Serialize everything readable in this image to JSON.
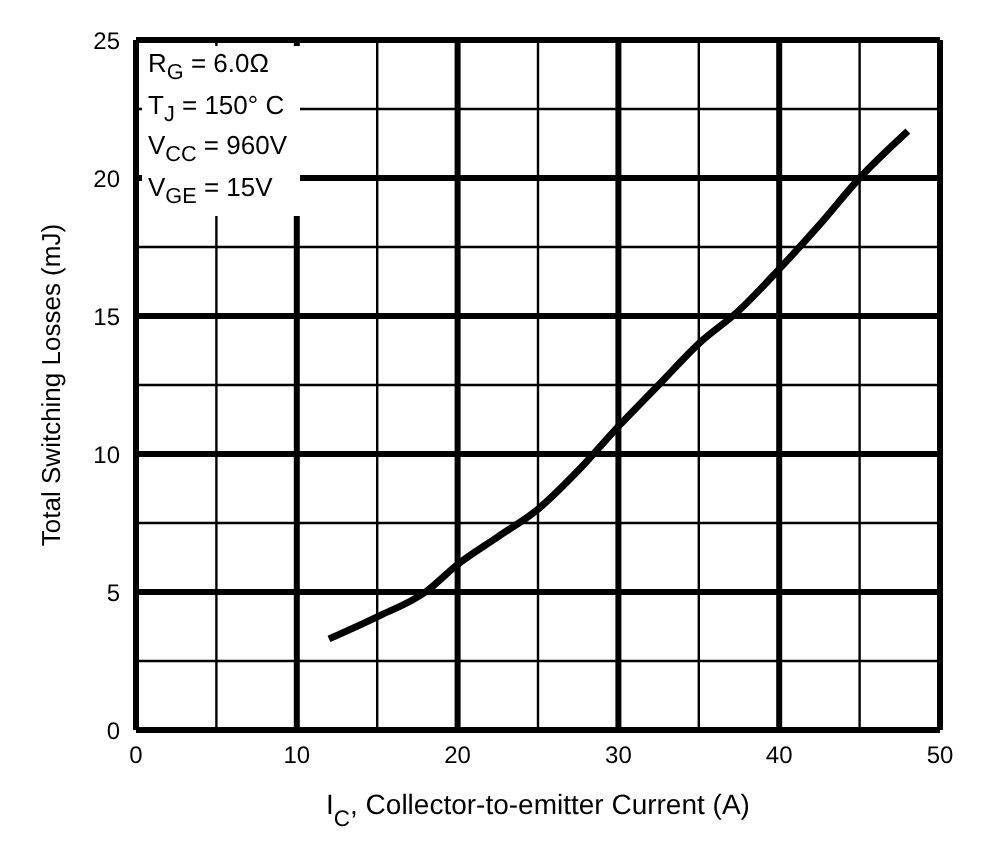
{
  "chart_data": {
    "type": "line",
    "xlabel": "I$_{C}$, Collector-to-emitter Current (A)",
    "ylabel": "Total Switching Losses (mJ)",
    "annotations": [
      "R$_{G}$ = 6.0Ω",
      "T$_{J}$ = 150° C",
      "V$_{CC}$ = 960V",
      "V$_{GE}$ = 15V"
    ],
    "series": [
      {
        "color": "#000000",
        "x": [
          12,
          15,
          18,
          20,
          22.5,
          25,
          27.5,
          30,
          32.5,
          35,
          37.5,
          40,
          42.5,
          45,
          48
        ],
        "values": [
          3.3,
          4.1,
          5,
          6,
          7,
          8,
          9.4,
          11,
          12.5,
          14,
          15.2,
          16.7,
          18.3,
          20,
          21.7
        ]
      }
    ],
    "xlim": [
      0,
      50
    ],
    "xticks": [
      0,
      {
        "value": 5,
        "label": null
      },
      10,
      {
        "value": 15,
        "label": null
      },
      20,
      {
        "value": 25,
        "label": null
      },
      30,
      {
        "value": 35,
        "label": null
      },
      40,
      {
        "value": 45,
        "label": null
      },
      50
    ],
    "ylim": [
      0,
      25
    ],
    "yticks": [
      0,
      {
        "value": 2.5,
        "label": null
      },
      5,
      {
        "value": 7.5,
        "label": null
      },
      10,
      {
        "value": 12.5,
        "label": null
      },
      15,
      {
        "value": 17.5,
        "label": null
      },
      20,
      {
        "value": 22.5,
        "label": null
      },
      25
    ],
    "grid": true,
    "marker": "none",
    "line_style": "solid"
  }
}
